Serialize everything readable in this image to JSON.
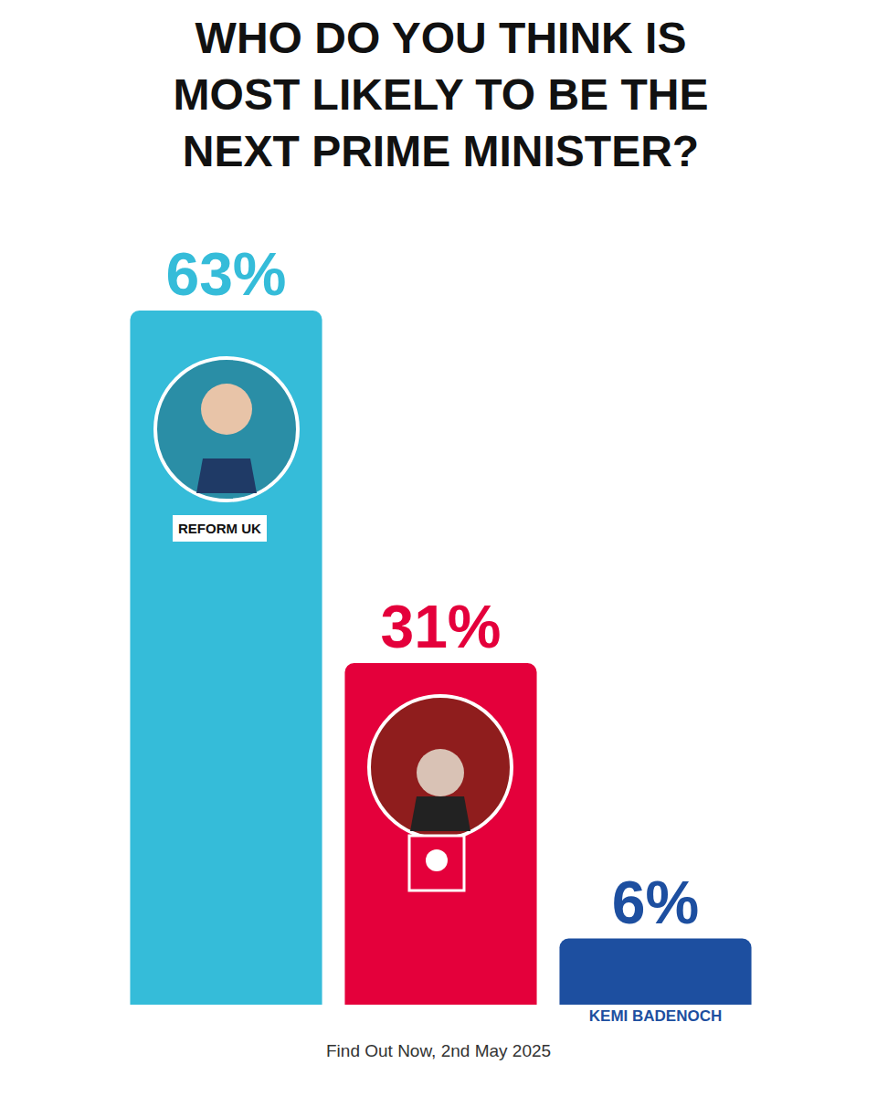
{
  "chart_data": {
    "type": "bar",
    "title": "WHO DO YOU THINK IS MOST LIKELY TO BE THE NEXT PRIME MINISTER?",
    "categories": [
      null,
      null,
      "KEMI BADENOCH"
    ],
    "values": [
      63,
      31,
      6
    ],
    "value_labels": [
      "63%",
      "31%",
      "6%"
    ],
    "colors": [
      "#35bcd9",
      "#e4003b",
      "#1d4fa0"
    ],
    "data_labels": true,
    "ylim": [
      0,
      63
    ],
    "tick_labels": "x",
    "annotations": [
      "REFORM UK"
    ],
    "source": "Find Out Now, 2nd May 2025"
  }
}
